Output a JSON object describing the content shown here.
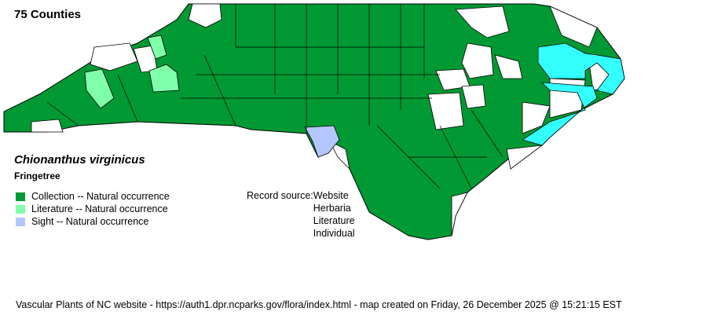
{
  "header": {
    "county_count": "75 Counties"
  },
  "species": {
    "scientific_name": "Chionanthus virginicus",
    "common_name": "Fringetree"
  },
  "legend": [
    {
      "label": "Collection -- Natural occurrence",
      "color": "#009933"
    },
    {
      "label": "Literature -- Natural occurrence",
      "color": "#80ffaa"
    },
    {
      "label": "Sight -- Natural occurrence",
      "color": "#b3c6ff"
    }
  ],
  "record_source": {
    "label": "Record source:",
    "items": [
      "Website",
      "Herbaria",
      "Literature",
      "Individual"
    ]
  },
  "map_colors": {
    "collection": "#009933",
    "literature": "#80ffaa",
    "sight": "#b3c6ff",
    "water": "#33ffff",
    "no_record": "#ffffff"
  },
  "footer": "Vascular Plants of NC website - https://auth1.dpr.ncparks.gov/flora/index.html - map created on Friday, 26 December 2025 @ 15:21:15 EST"
}
